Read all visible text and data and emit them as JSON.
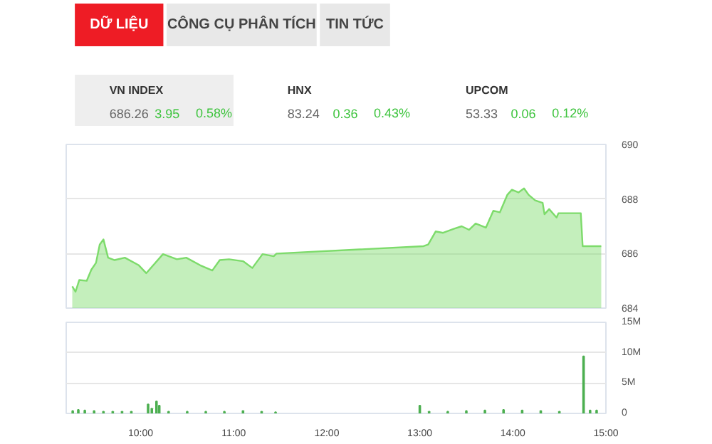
{
  "chart_data": [
    {
      "type": "other",
      "annotations": [
        "DỮ LIỆU",
        "CÔNG CỤ PHÂN TÍCH",
        "TIN TỨC",
        "VN INDEX",
        "686.26",
        "3.95",
        "0.58%",
        "HNX",
        "83.24",
        "0.36",
        "0.43%",
        "UPCOM",
        "53.33",
        "0.06",
        "0.12%"
      ]
    },
    {
      "type": "area",
      "color": "#7ddb6b",
      "xlim": [
        9.2,
        15
      ],
      "ylim": [
        684,
        690
      ],
      "yticks": [
        684,
        686,
        688,
        690
      ],
      "grid": "y",
      "tick_labels": "y",
      "x": [
        9.265,
        9.3,
        9.34,
        9.42,
        9.47,
        9.52,
        9.56,
        9.6,
        9.65,
        9.72,
        9.83,
        9.98,
        10.06,
        10.24,
        10.39,
        10.49,
        10.64,
        10.77,
        10.85,
        10.95,
        11.1,
        11.2,
        11.31,
        11.43,
        11.46,
        13.04,
        13.09,
        13.17,
        13.25,
        13.37,
        13.45,
        13.53,
        13.6,
        13.71,
        13.79,
        13.86,
        13.94,
        13.99,
        14.06,
        14.12,
        14.17,
        14.24,
        14.32,
        14.34,
        14.39,
        14.47,
        14.49,
        14.73,
        14.75,
        14.95
      ],
      "values": [
        684.8,
        684.6,
        685.03,
        685.0,
        685.41,
        685.66,
        686.33,
        686.52,
        685.85,
        685.76,
        685.85,
        685.57,
        685.28,
        685.98,
        685.79,
        685.85,
        685.57,
        685.38,
        685.76,
        685.79,
        685.72,
        685.47,
        685.98,
        685.9,
        686.0,
        686.27,
        686.33,
        686.81,
        686.76,
        686.91,
        687.0,
        686.87,
        687.1,
        686.95,
        687.57,
        687.51,
        688.15,
        688.34,
        688.24,
        688.39,
        688.15,
        687.95,
        687.86,
        687.44,
        687.63,
        687.32,
        687.48,
        687.48,
        686.27,
        686.27
      ]
    },
    {
      "type": "bar",
      "color": "#4caf50",
      "xlim": [
        9.2,
        15
      ],
      "ylim": [
        0,
        15000000
      ],
      "grid": "y",
      "yticks": [
        0,
        {
          "value": 5000000,
          "label": "5M"
        },
        {
          "value": 10000000,
          "label": "10M"
        },
        {
          "value": 15000000,
          "label": "15M"
        }
      ],
      "xticks": [
        {
          "value": 10,
          "label": "10:00"
        },
        {
          "value": 11,
          "label": "11:00"
        },
        {
          "value": 12,
          "label": "12:00"
        },
        {
          "value": 13,
          "label": "13:00"
        },
        {
          "value": 14,
          "label": "14:00"
        },
        {
          "value": 15,
          "label": "15:00"
        }
      ],
      "x": [
        9.27,
        9.33,
        9.4,
        9.5,
        9.6,
        9.7,
        9.8,
        9.9,
        10.08,
        10.12,
        10.17,
        10.2,
        10.3,
        10.5,
        10.7,
        10.9,
        11.1,
        11.3,
        11.45,
        13.0,
        13.1,
        13.3,
        13.5,
        13.7,
        13.9,
        14.1,
        14.3,
        14.5,
        14.76,
        14.83,
        14.9
      ],
      "values": [
        400000,
        600000,
        500000,
        400000,
        300000,
        300000,
        300000,
        300000,
        1500000,
        800000,
        2000000,
        1300000,
        300000,
        300000,
        300000,
        300000,
        400000,
        300000,
        200000,
        1300000,
        300000,
        300000,
        400000,
        500000,
        600000,
        500000,
        400000,
        300000,
        9400000,
        500000,
        500000
      ]
    }
  ]
}
